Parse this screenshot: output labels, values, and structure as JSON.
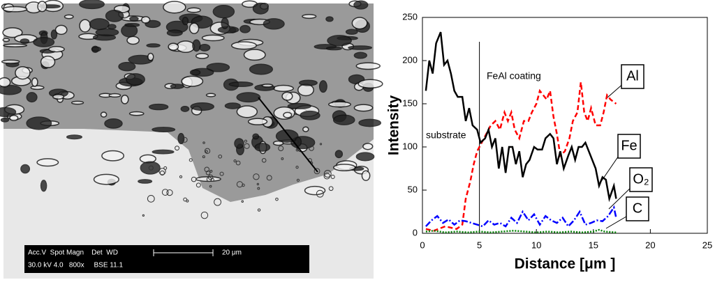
{
  "micrograph": {
    "info_header": "Acc.V  Spot Magn    Det  WD",
    "info_values": "30.0 kV 4.0   800x     BSE 11.1",
    "scale_label": "20 μm"
  },
  "chart_data": {
    "type": "line",
    "xlabel": "Distance [μm ]",
    "ylabel": "Intensity",
    "annotations": [
      "FeAl coating",
      "substrate"
    ],
    "vline": 5,
    "xlim": [
      0,
      25
    ],
    "xticks": [
      0,
      5,
      10,
      15,
      20,
      25
    ],
    "ylim": [
      0,
      250
    ],
    "yticks": [
      0,
      50,
      100,
      150,
      200,
      250
    ],
    "series": [
      {
        "name": "Al",
        "color": "#ff0000",
        "dash": "7,4",
        "x": [
          0.3,
          1,
          2,
          3,
          3.5,
          3.8,
          4.2,
          4.5,
          4.8,
          5.2,
          5.6,
          6,
          6.4,
          6.8,
          7.2,
          7.5,
          7.8,
          8.1,
          8.5,
          8.9,
          9.3,
          9.6,
          10,
          10.3,
          10.6,
          10.9,
          11.2,
          11.5,
          11.8,
          12.1,
          12.5,
          12.9,
          13.2,
          13.6,
          13.9,
          14.2,
          14.5,
          14.8,
          15.2,
          15.6,
          15.9,
          16.2,
          16.5,
          17
        ],
        "values": [
          5,
          3,
          8,
          5,
          10,
          40,
          60,
          80,
          95,
          105,
          115,
          125,
          130,
          120,
          140,
          130,
          140,
          120,
          110,
          130,
          130,
          140,
          150,
          165,
          160,
          155,
          165,
          135,
          115,
          90,
          95,
          110,
          130,
          140,
          175,
          140,
          130,
          145,
          125,
          125,
          140,
          160,
          155,
          150
        ]
      },
      {
        "name": "Fe",
        "color": "#000000",
        "dash": "",
        "x": [
          0.3,
          0.6,
          0.9,
          1.2,
          1.6,
          1.9,
          2.2,
          2.5,
          2.8,
          3.1,
          3.5,
          3.8,
          4.1,
          4.4,
          4.8,
          5.1,
          5.5,
          5.8,
          6.1,
          6.4,
          6.7,
          7,
          7.3,
          7.6,
          7.9,
          8.2,
          8.5,
          8.8,
          9.1,
          9.4,
          9.8,
          10.1,
          10.5,
          10.8,
          11.2,
          11.5,
          11.8,
          12.1,
          12.4,
          12.8,
          13.1,
          13.4,
          13.7,
          14,
          14.3,
          14.6,
          14.9,
          15.2,
          15.5,
          15.8,
          16.1,
          16.4,
          16.8,
          17
        ],
        "values": [
          165,
          200,
          185,
          220,
          233,
          195,
          200,
          185,
          165,
          158,
          158,
          130,
          145,
          125,
          120,
          105,
          110,
          120,
          100,
          110,
          75,
          100,
          70,
          100,
          100,
          80,
          95,
          65,
          80,
          85,
          100,
          97,
          97,
          110,
          115,
          110,
          80,
          95,
          75,
          90,
          100,
          85,
          100,
          100,
          105,
          95,
          85,
          75,
          55,
          65,
          62,
          40,
          55,
          40
        ]
      },
      {
        "name": "O₂",
        "color": "#0000ff",
        "dash": "9,3,2,3",
        "x": [
          0.3,
          0.8,
          1.3,
          1.8,
          2.3,
          2.8,
          3.3,
          3.8,
          4.3,
          4.8,
          5.3,
          5.8,
          6.3,
          6.8,
          7.3,
          7.8,
          8.3,
          8.8,
          9.3,
          9.8,
          10.3,
          10.8,
          11.3,
          11.8,
          12.3,
          12.8,
          13.3,
          13.8,
          14.3,
          14.8,
          15.3,
          15.8,
          16.3,
          16.8,
          17
        ],
        "values": [
          8,
          15,
          20,
          12,
          16,
          10,
          15,
          14,
          12,
          10,
          8,
          15,
          10,
          12,
          8,
          18,
          12,
          25,
          15,
          22,
          10,
          20,
          15,
          12,
          18,
          8,
          15,
          25,
          10,
          12,
          15,
          14,
          20,
          30,
          18
        ]
      },
      {
        "name": "C",
        "color": "#008000",
        "dash": "2,2",
        "x": [
          0.3,
          1,
          2,
          3,
          4,
          5,
          6,
          7,
          8,
          9,
          10,
          11,
          12,
          13,
          14,
          15,
          15.5,
          16,
          17
        ],
        "values": [
          2,
          3,
          1,
          2,
          1,
          2,
          1,
          2,
          3,
          2,
          1,
          2,
          1,
          2,
          1,
          2,
          4,
          2,
          1
        ]
      }
    ]
  }
}
